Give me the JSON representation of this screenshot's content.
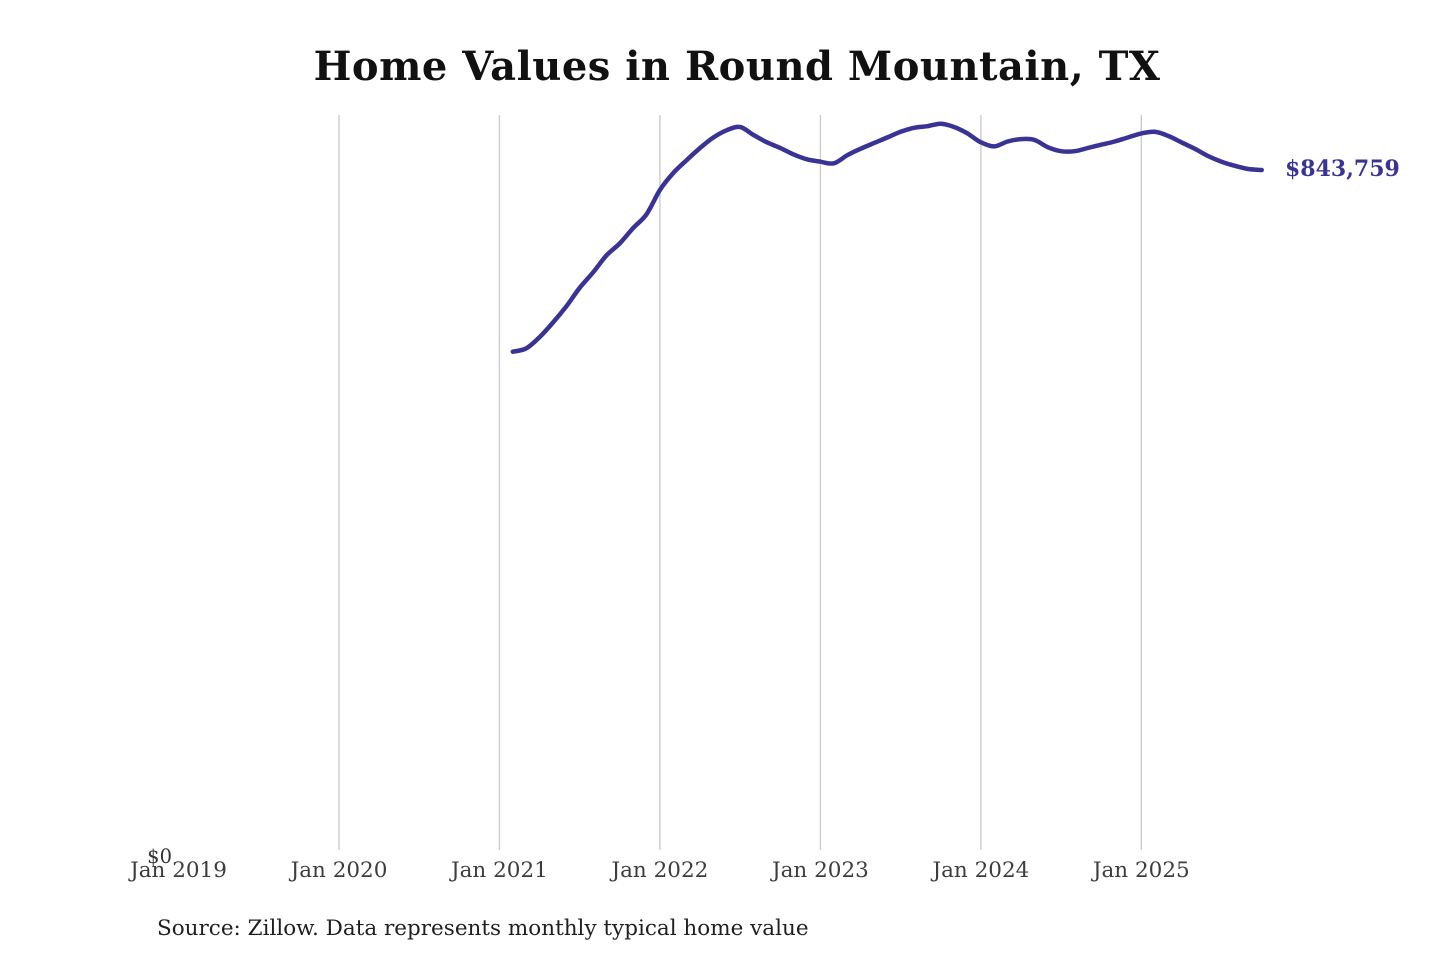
{
  "window": {
    "background": "#ffffff"
  },
  "header": {
    "title": "Home Values in Round Mountain, TX"
  },
  "chart_data": {
    "type": "line",
    "title": "Home Values in Round Mountain, TX",
    "x_tick_labels": [
      "Jan 2019",
      "Jan 2020",
      "Jan 2021",
      "Jan 2022",
      "Jan 2023",
      "Jan 2024",
      "Jan 2025"
    ],
    "y_zero_label": "$0",
    "end_label": "$843,759",
    "latest_value": 843759,
    "grid": "vertical gridlines at Jan 2020 through Jan 2025; no horizontal gridlines; no axis lines",
    "legend": "none",
    "line_color": "#3a3396",
    "gridline_color": "#cccccc",
    "y_axis_range_implied": [
      0,
      915000
    ],
    "series": [
      {
        "name": "Monthly typical home value",
        "months": [
          "2021-02",
          "2021-03",
          "2021-04",
          "2021-05",
          "2021-06",
          "2021-07",
          "2021-08",
          "2021-09",
          "2021-10",
          "2021-11",
          "2021-12",
          "2022-01",
          "2022-02",
          "2022-03",
          "2022-04",
          "2022-05",
          "2022-06",
          "2022-07",
          "2022-08",
          "2022-09",
          "2022-10",
          "2022-11",
          "2022-12",
          "2023-01",
          "2023-02",
          "2023-03",
          "2023-04",
          "2023-05",
          "2023-06",
          "2023-07",
          "2023-08",
          "2023-09",
          "2023-10",
          "2023-11",
          "2023-12",
          "2024-01",
          "2024-02",
          "2024-03",
          "2024-04",
          "2024-05",
          "2024-06",
          "2024-07",
          "2024-08",
          "2024-09",
          "2024-10",
          "2024-11",
          "2024-12",
          "2025-01",
          "2025-02",
          "2025-03",
          "2025-04",
          "2025-05",
          "2025-06",
          "2025-07",
          "2025-08",
          "2025-09",
          "2025-10"
        ],
        "values": [
          619000,
          623000,
          637000,
          655000,
          675000,
          698000,
          717000,
          738000,
          753000,
          772000,
          789000,
          819000,
          840000,
          856000,
          871000,
          884000,
          893000,
          897000,
          887000,
          878000,
          871000,
          863000,
          857000,
          854000,
          852000,
          862000,
          870000,
          877000,
          884000,
          891000,
          896000,
          898000,
          901000,
          897000,
          889000,
          878000,
          873000,
          879000,
          882000,
          881000,
          872000,
          867000,
          867000,
          871000,
          875000,
          879000,
          884000,
          889000,
          891000,
          886000,
          878000,
          870000,
          861000,
          854000,
          849000,
          845000,
          843759
        ]
      }
    ]
  },
  "footer": {
    "source_note": "Source: Zillow. Data represents monthly typical home value"
  }
}
